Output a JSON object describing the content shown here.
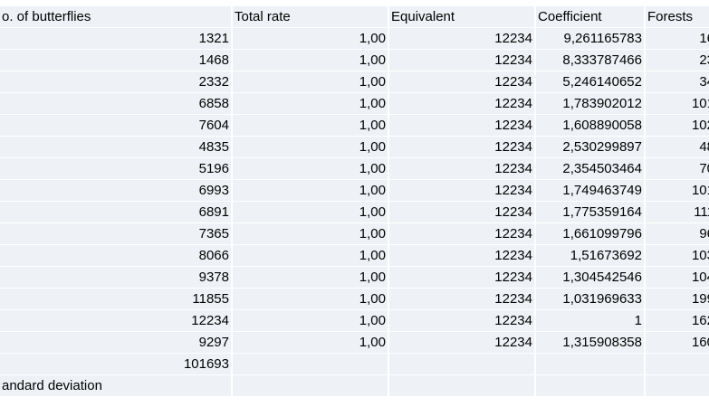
{
  "table": {
    "headers": [
      "o. of butterflies",
      "Total rate",
      "Equivalent",
      "Coefficient",
      "Forests"
    ],
    "rows": [
      [
        "1321",
        "1,00",
        "12234",
        "9,261165783",
        "16"
      ],
      [
        "1468",
        "1,00",
        "12234",
        "8,333787466",
        "23"
      ],
      [
        "2332",
        "1,00",
        "12234",
        "5,246140652",
        "34"
      ],
      [
        "6858",
        "1,00",
        "12234",
        "1,783902012",
        "101"
      ],
      [
        "7604",
        "1,00",
        "12234",
        "1,608890058",
        "102"
      ],
      [
        "4835",
        "1,00",
        "12234",
        "2,530299897",
        "48"
      ],
      [
        "5196",
        "1,00",
        "12234",
        "2,354503464",
        "70"
      ],
      [
        "6993",
        "1,00",
        "12234",
        "1,749463749",
        "101"
      ],
      [
        "6891",
        "1,00",
        "12234",
        "1,775359164",
        "111"
      ],
      [
        "7365",
        "1,00",
        "12234",
        "1,661099796",
        "96"
      ],
      [
        "8066",
        "1,00",
        "12234",
        "1,51673692",
        "103"
      ],
      [
        "9378",
        "1,00",
        "12234",
        "1,304542546",
        "104"
      ],
      [
        "11855",
        "1,00",
        "12234",
        "1,031969633",
        "199"
      ],
      [
        "12234",
        "1,00",
        "12234",
        "1",
        "162"
      ],
      [
        "9297",
        "1,00",
        "12234",
        "1,315908358",
        "160"
      ]
    ],
    "total": "101693",
    "footer_label": "andard deviation"
  }
}
